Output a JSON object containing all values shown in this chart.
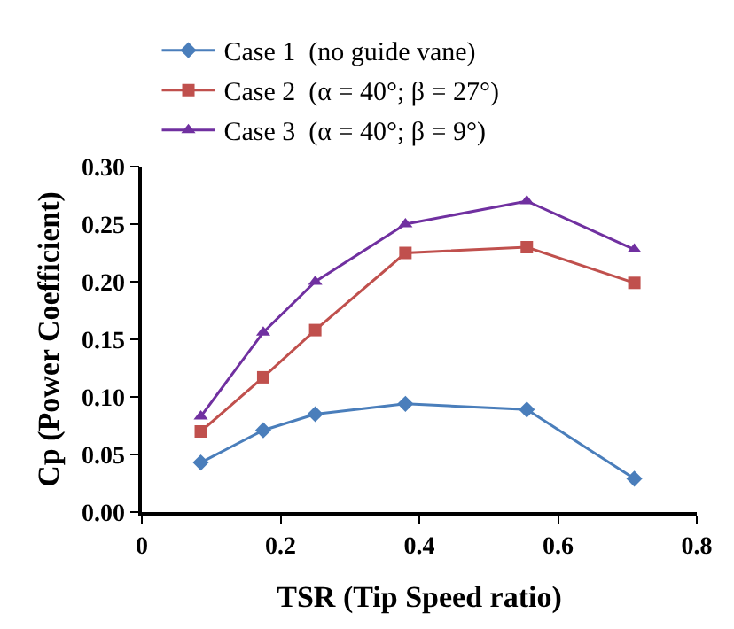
{
  "chart_data": {
    "type": "line",
    "xlabel": "TSR (Tip Speed ratio)",
    "ylabel": "Cp (Power Coefficient)",
    "x": [
      0.085,
      0.175,
      0.25,
      0.38,
      0.555,
      0.71
    ],
    "series": [
      {
        "name": "Case 1  (no guide vane)",
        "color": "#4a7ebb",
        "marker": "diamond",
        "values": [
          0.043,
          0.071,
          0.085,
          0.094,
          0.089,
          0.029
        ]
      },
      {
        "name": "Case 2  (α = 40°; β = 27°)",
        "color": "#c0504d",
        "marker": "square",
        "values": [
          0.07,
          0.117,
          0.158,
          0.225,
          0.23,
          0.199
        ]
      },
      {
        "name": "Case 3  (α = 40°; β = 9°)",
        "color": "#7030a0",
        "marker": "triangle",
        "values": [
          0.083,
          0.156,
          0.2,
          0.25,
          0.27,
          0.228
        ]
      }
    ],
    "xlim": [
      0,
      0.8
    ],
    "xticks": [
      {
        "value": 0,
        "label": "0"
      },
      0.2,
      0.4,
      0.6,
      0.8
    ],
    "ylim": [
      0,
      0.3
    ],
    "yticks": [
      {
        "value": 0,
        "label": "0.00"
      },
      {
        "value": 0.05,
        "label": "0.05"
      },
      {
        "value": 0.1,
        "label": "0.10"
      },
      {
        "value": 0.15,
        "label": "0.15"
      },
      {
        "value": 0.2,
        "label": "0.20"
      },
      {
        "value": 0.25,
        "label": "0.25"
      },
      {
        "value": 0.3,
        "label": "0.30"
      }
    ],
    "legend": "top",
    "line_style": "solid"
  }
}
